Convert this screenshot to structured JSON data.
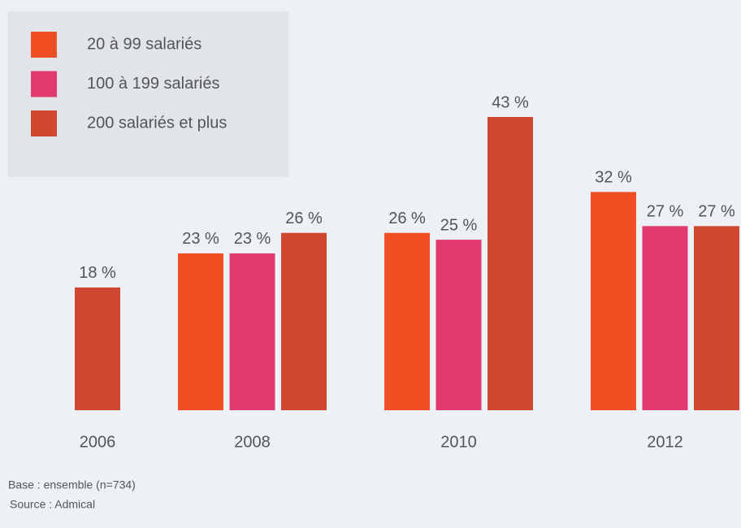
{
  "chart_data": {
    "type": "bar",
    "categories": [
      "2006",
      "2008",
      "2010",
      "2012"
    ],
    "series": [
      {
        "name": "20 à 99  salariés",
        "color": "#f04e23",
        "values": [
          null,
          23,
          26,
          32
        ],
        "value_labels": [
          null,
          "23 %",
          "26 %",
          "32 %"
        ]
      },
      {
        "name": "100 à 199 salariés",
        "color": "#e03a6e",
        "values": [
          null,
          23,
          25,
          27
        ],
        "value_labels": [
          null,
          "23 %",
          "25 %",
          "27 %"
        ]
      },
      {
        "name": "200 salariés et plus",
        "color": "#cf4631",
        "values": [
          18,
          26,
          43,
          27
        ],
        "value_labels": [
          "18 %",
          "26 %",
          "43 %",
          "27 %"
        ]
      }
    ],
    "notes": [
      "Base : ensemble (n=734)",
      "Source : Admical"
    ]
  }
}
